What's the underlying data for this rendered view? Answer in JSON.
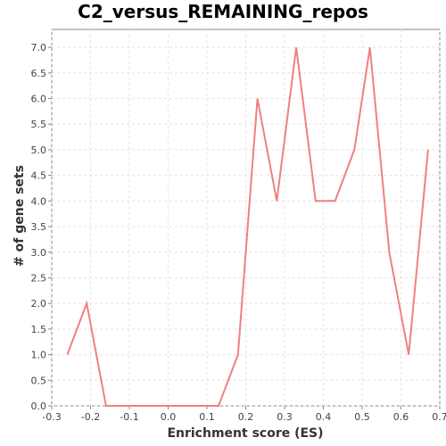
{
  "chart_data": {
    "type": "line",
    "title": "C2_versus_REMAINING_repos",
    "xlabel": "Enrichment score (ES)",
    "ylabel": "# of gene sets",
    "xlim": [
      -0.3,
      0.7
    ],
    "ylim": [
      0.0,
      7.35
    ],
    "x_ticks": [
      "-0.3",
      "-0.2",
      "-0.1",
      "0.0",
      "0.1",
      "0.2",
      "0.3",
      "0.4",
      "0.5",
      "0.6",
      "0.7"
    ],
    "y_ticks": [
      "0.0",
      "0.5",
      "1.0",
      "1.5",
      "2.0",
      "2.5",
      "3.0",
      "3.5",
      "4.0",
      "4.5",
      "5.0",
      "5.5",
      "6.0",
      "6.5",
      "7.0"
    ],
    "grid": true,
    "legend": "none",
    "line_color": "#f08080",
    "series": [
      {
        "x": [
          -0.26,
          -0.21,
          -0.16,
          -0.11,
          -0.06,
          -0.01,
          0.04,
          0.09,
          0.13,
          0.18,
          0.23,
          0.28,
          0.33,
          0.38,
          0.43,
          0.48,
          0.52,
          0.57,
          0.62,
          0.67
        ],
        "y": [
          1,
          2,
          0,
          0,
          0,
          0,
          0,
          0,
          0,
          1,
          6,
          4,
          7,
          4,
          4,
          5,
          7,
          3,
          1,
          5
        ]
      }
    ]
  }
}
